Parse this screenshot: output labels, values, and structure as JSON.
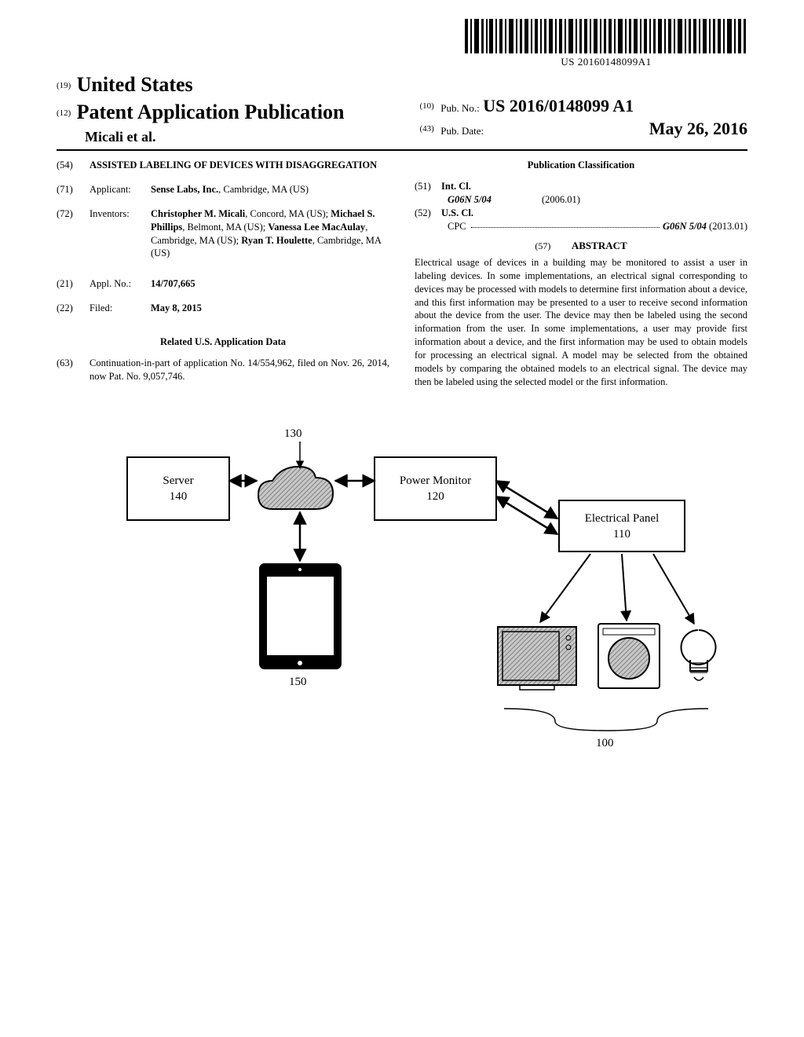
{
  "barcode": {
    "text": "US 20160148099A1"
  },
  "header": {
    "jurisdiction_code": "(19)",
    "country": "United States",
    "pub_type_code": "(12)",
    "pub_type": "Patent Application Publication",
    "authors": "Micali et al.",
    "pubno_code": "(10)",
    "pubno_label": "Pub. No.:",
    "pubno_value": "US 2016/0148099 A1",
    "pubdate_code": "(43)",
    "pubdate_label": "Pub. Date:",
    "pubdate_value": "May 26, 2016"
  },
  "left": {
    "title_code": "(54)",
    "title": "ASSISTED LABELING OF DEVICES WITH DISAGGREGATION",
    "applicant_code": "(71)",
    "applicant_label": "Applicant:",
    "applicant_name": "Sense Labs, Inc.",
    "applicant_loc": ", Cambridge, MA (US)",
    "inventors_code": "(72)",
    "inventors_label": "Inventors:",
    "inventors_html": "<b>Christopher M. Micali</b>, Concord, MA (US); <b>Michael S. Phillips</b>, Belmont, MA (US); <b>Vanessa Lee MacAulay</b>, Cambridge, MA (US); <b>Ryan T. Houlette</b>, Cambridge, MA (US)",
    "applno_code": "(21)",
    "applno_label": "Appl. No.:",
    "applno_value": "14/707,665",
    "filed_code": "(22)",
    "filed_label": "Filed:",
    "filed_value": "May 8, 2015",
    "related_heading": "Related U.S. Application Data",
    "related_code": "(63)",
    "related_text": "Continuation-in-part of application No. 14/554,962, filed on Nov. 26, 2014, now Pat. No. 9,057,746."
  },
  "right": {
    "classif_heading": "Publication Classification",
    "intcl_code": "(51)",
    "intcl_label": "Int. Cl.",
    "intcl_symbol": "G06N 5/04",
    "intcl_version": "(2006.01)",
    "uscl_code": "(52)",
    "uscl_label": "U.S. Cl.",
    "cpc_prefix": "CPC",
    "cpc_value": "G06N 5/04",
    "cpc_version": " (2013.01)",
    "abstract_code": "(57)",
    "abstract_heading": "ABSTRACT",
    "abstract": "Electrical usage of devices in a building may be monitored to assist a user in labeling devices. In some implementations, an electrical signal corresponding to devices may be processed with models to determine first information about a device, and this first information may be presented to a user to receive second information about the device from the user. The device may then be labeled using the second information from the user. In some implementations, a user may provide first information about a device, and the first information may be used to obtain models for processing an electrical signal. A model may be selected from the obtained models by comparing the obtained models to an electrical signal. The device may then be labeled using the selected model or the first information."
  },
  "figure": {
    "server_label": "Server",
    "server_num": "140",
    "cloud_num": "130",
    "monitor_label": "Power Monitor",
    "monitor_num": "120",
    "panel_label": "Electrical Panel",
    "panel_num": "110",
    "tablet_num": "150",
    "devices_num": "100"
  },
  "colors": {
    "stroke": "#000000",
    "hatch": "#888888",
    "bg": "#ffffff"
  }
}
